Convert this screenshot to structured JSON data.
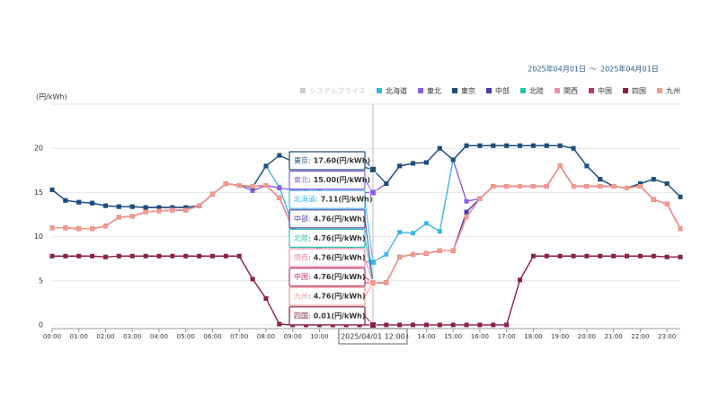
{
  "chart_data": {
    "type": "line",
    "date_range": {
      "start": "2025年04月01日",
      "separator": "〜",
      "end": "2025年04月01日"
    },
    "y_label": "(円/kWh)",
    "categories": [
      "00:00",
      null,
      "01:00",
      null,
      "02:00",
      null,
      "03:00",
      null,
      "04:00",
      null,
      "05:00",
      null,
      "06:00",
      null,
      "07:00",
      null,
      "08:00",
      null,
      "09:00",
      null,
      "10:00",
      null,
      "11:00",
      null,
      "12:00",
      null,
      "13:00",
      null,
      "14:00",
      null,
      "15:00",
      null,
      "16:00",
      null,
      "17:00",
      null,
      "18:00",
      null,
      "19:00",
      null,
      "20:00",
      null,
      "21:00",
      null,
      "22:00",
      null,
      "23:00",
      null
    ],
    "ylim": [
      0,
      25
    ],
    "yticks": [
      0,
      5,
      10,
      15,
      20
    ],
    "grid": true,
    "legend": "top-right",
    "series": [
      {
        "name": "システムプライス",
        "color": "#cccccc",
        "hidden": true
      },
      {
        "name": "北海道",
        "color": "#3fb6e8",
        "values": [
          15.3,
          14.1,
          13.9,
          13.8,
          13.5,
          13.4,
          13.4,
          13.3,
          13.3,
          13.3,
          13.3,
          13.5,
          14.8,
          16.0,
          15.8,
          15.6,
          18.0,
          15.6,
          11.3,
          9.5,
          8.5,
          8.0,
          7.5,
          7.2,
          7.11,
          8.0,
          10.5,
          10.4,
          11.5,
          10.6,
          18.7,
          20.3,
          20.3,
          20.3,
          20.3,
          20.3,
          20.3,
          20.3,
          20.3,
          20.0,
          18.0,
          16.5,
          15.7,
          15.5,
          16.0,
          16.5,
          16.0,
          14.5
        ]
      },
      {
        "name": "東北",
        "color": "#8c5fe6",
        "values": [
          15.3,
          14.1,
          13.9,
          13.8,
          13.5,
          13.4,
          13.4,
          13.3,
          13.3,
          13.3,
          13.3,
          13.5,
          14.8,
          16.0,
          15.8,
          15.2,
          15.8,
          15.5,
          15.3,
          15.2,
          15.1,
          15.0,
          15.0,
          15.0,
          15.0,
          16.0,
          18.0,
          18.3,
          18.4,
          20.0,
          18.7,
          14.0,
          14.3,
          15.7,
          15.7,
          15.7,
          15.7,
          15.7,
          18.0,
          15.7,
          15.7,
          15.7,
          15.7,
          15.5,
          15.7,
          14.2,
          13.7,
          10.9
        ]
      },
      {
        "name": "東京",
        "color": "#1f4e79",
        "values": [
          15.3,
          14.1,
          13.9,
          13.8,
          13.5,
          13.4,
          13.4,
          13.3,
          13.3,
          13.3,
          13.3,
          13.5,
          14.8,
          16.0,
          15.8,
          15.6,
          18.0,
          19.2,
          18.5,
          18.2,
          18.2,
          18.2,
          18.2,
          18.0,
          17.6,
          16.0,
          18.0,
          18.3,
          18.4,
          20.0,
          18.7,
          20.3,
          20.3,
          20.3,
          20.3,
          20.3,
          20.3,
          20.3,
          20.3,
          20.0,
          18.0,
          16.5,
          15.7,
          15.5,
          16.0,
          16.5,
          16.0,
          14.5
        ]
      },
      {
        "name": "中部",
        "color": "#4a3aa8",
        "values": [
          11.0,
          11.0,
          10.9,
          10.9,
          11.2,
          12.2,
          12.3,
          12.8,
          12.9,
          13.0,
          13.0,
          13.5,
          14.8,
          16.0,
          15.8,
          15.7,
          15.8,
          14.4,
          11.0,
          8.0,
          6.0,
          5.0,
          4.8,
          4.8,
          4.76,
          4.8,
          7.7,
          8.0,
          8.1,
          8.4,
          8.4,
          12.8,
          14.3,
          15.7,
          15.7,
          15.7,
          15.7,
          15.7,
          18.0,
          15.7,
          15.7,
          15.7,
          15.7,
          15.5,
          15.7,
          14.2,
          13.7,
          10.9
        ]
      },
      {
        "name": "北陸",
        "color": "#29c3b5",
        "values": [
          11.0,
          11.0,
          10.9,
          10.9,
          11.2,
          12.2,
          12.3,
          12.8,
          12.9,
          13.0,
          13.0,
          13.5,
          14.8,
          16.0,
          15.8,
          15.7,
          15.8,
          14.4,
          11.0,
          8.0,
          6.0,
          5.0,
          4.8,
          4.8,
          4.76,
          4.8,
          7.7,
          8.0,
          8.1,
          8.4,
          8.4,
          12.2,
          14.3,
          15.7,
          15.7,
          15.7,
          15.7,
          15.7,
          18.0,
          15.7,
          15.7,
          15.7,
          15.7,
          15.5,
          15.7,
          14.2,
          13.7,
          10.9
        ]
      },
      {
        "name": "関西",
        "color": "#f08da6",
        "values": [
          11.0,
          11.0,
          10.9,
          10.9,
          11.2,
          12.2,
          12.3,
          12.8,
          12.9,
          13.0,
          13.0,
          13.5,
          14.8,
          16.0,
          15.8,
          15.7,
          15.8,
          14.4,
          11.0,
          8.0,
          6.0,
          5.0,
          4.8,
          4.8,
          4.76,
          4.8,
          7.7,
          8.0,
          8.1,
          8.4,
          8.4,
          12.2,
          14.3,
          15.7,
          15.7,
          15.7,
          15.7,
          15.7,
          18.0,
          15.7,
          15.7,
          15.7,
          15.7,
          15.5,
          15.7,
          14.2,
          13.7,
          10.9
        ]
      },
      {
        "name": "中国",
        "color": "#c0306e",
        "values": [
          11.0,
          11.0,
          10.9,
          10.9,
          11.2,
          12.2,
          12.3,
          12.8,
          12.9,
          13.0,
          13.0,
          13.5,
          14.8,
          16.0,
          15.8,
          15.7,
          15.8,
          14.4,
          11.0,
          8.0,
          6.0,
          5.0,
          4.8,
          4.8,
          4.76,
          4.8,
          7.7,
          8.0,
          8.1,
          8.4,
          8.4,
          12.2,
          14.3,
          15.7,
          15.7,
          15.7,
          15.7,
          15.7,
          18.0,
          15.7,
          15.7,
          15.7,
          15.7,
          15.5,
          15.7,
          14.2,
          13.7,
          10.9
        ]
      },
      {
        "name": "四国",
        "color": "#8b1e4c",
        "values": [
          7.8,
          7.8,
          7.8,
          7.8,
          7.7,
          7.8,
          7.8,
          7.8,
          7.8,
          7.8,
          7.8,
          7.8,
          7.8,
          7.8,
          7.8,
          5.2,
          3.0,
          0.1,
          0.01,
          0.01,
          0.01,
          0.01,
          0.01,
          0.01,
          0.01,
          0.01,
          0.01,
          0.01,
          0.01,
          0.01,
          0.01,
          0.01,
          0.01,
          0.01,
          0.01,
          5.1,
          7.8,
          7.8,
          7.8,
          7.8,
          7.8,
          7.8,
          7.8,
          7.8,
          7.8,
          7.8,
          7.7,
          7.7
        ]
      },
      {
        "name": "九州",
        "color": "#f49a8c",
        "values": [
          11.0,
          11.0,
          10.9,
          10.9,
          11.2,
          12.2,
          12.3,
          12.8,
          12.9,
          13.0,
          13.0,
          13.5,
          14.8,
          16.0,
          15.8,
          15.7,
          15.8,
          14.4,
          11.0,
          8.0,
          6.0,
          5.0,
          4.8,
          4.8,
          4.76,
          4.8,
          7.7,
          8.0,
          8.1,
          8.4,
          8.4,
          12.2,
          14.3,
          15.7,
          15.7,
          15.7,
          15.7,
          15.7,
          18.0,
          15.7,
          15.7,
          15.7,
          15.7,
          15.5,
          15.7,
          14.2,
          13.7,
          10.9
        ]
      }
    ],
    "tooltip": {
      "title": "2025/04/01 12:00",
      "separator": ":",
      "labels": [
        null,
        "7.11(円/kWh)",
        "15.00(円/kWh)",
        "17.60(円/kWh)",
        "4.76(円/kWh)",
        "4.76(円/kWh)",
        "4.76(円/kWh)",
        "4.76(円/kWh)",
        "0.01(円/kWh)",
        "4.76(円/kWh)"
      ]
    }
  }
}
